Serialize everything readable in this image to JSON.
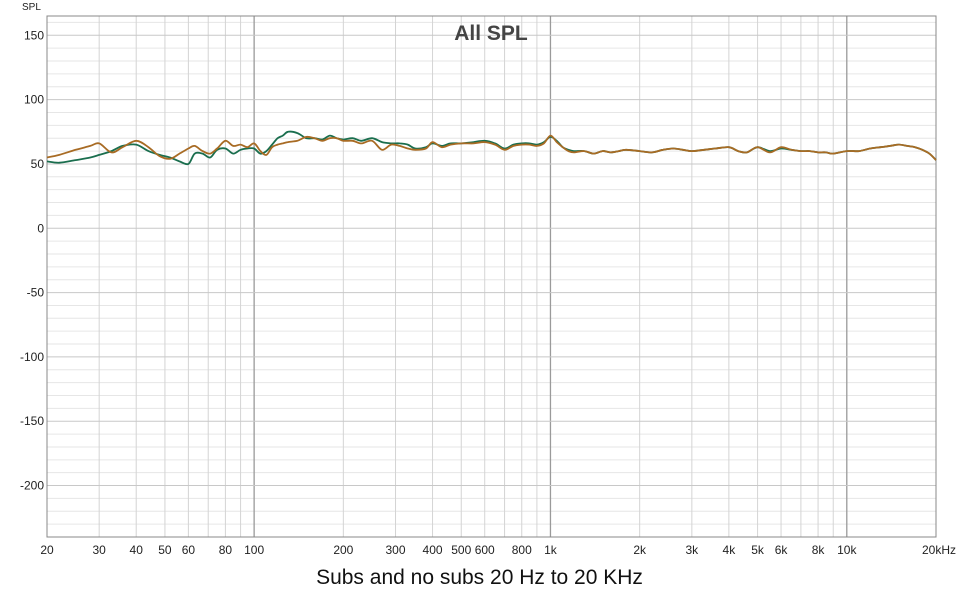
{
  "caption": "Subs and no subs 20 Hz to 20 KHz",
  "chart_data": {
    "type": "line",
    "title": "All SPL",
    "ylabel": "SPL",
    "xlabel": "",
    "x_scale": "log",
    "xlim": [
      20,
      20000
    ],
    "ylim": [
      -240,
      165
    ],
    "y_ticks": [
      150,
      100,
      50,
      0,
      -50,
      -100,
      -150,
      -200
    ],
    "y_tick_labels": [
      "150",
      "100",
      "50",
      "0",
      "-50",
      "-100",
      "-150",
      "-200"
    ],
    "x_ticks": [
      20,
      30,
      40,
      50,
      60,
      80,
      100,
      200,
      300,
      400,
      500,
      600,
      800,
      1000,
      2000,
      3000,
      4000,
      5000,
      6000,
      8000,
      10000,
      20000
    ],
    "x_tick_labels": [
      "20",
      "30",
      "40",
      "50",
      "60",
      "80",
      "100",
      "200",
      "300",
      "400",
      "500",
      "600",
      "800",
      "1k",
      "2k",
      "3k",
      "4k",
      "5k",
      "6k",
      "8k",
      "10k",
      "20kHz"
    ],
    "grid": true,
    "legend": "none",
    "series": [
      {
        "color": "#1a6e4e",
        "x": [
          20,
          22,
          25,
          28,
          30,
          33,
          36,
          40,
          44,
          48,
          52,
          56,
          60,
          63,
          67,
          71,
          75,
          80,
          85,
          90,
          95,
          100,
          105,
          110,
          115,
          120,
          125,
          130,
          140,
          150,
          160,
          170,
          180,
          190,
          200,
          215,
          230,
          250,
          270,
          290,
          310,
          330,
          350,
          380,
          400,
          430,
          460,
          500,
          550,
          600,
          650,
          700,
          750,
          800,
          850,
          900,
          950,
          1000,
          1050,
          1100,
          1150,
          1200,
          1300,
          1400,
          1500,
          1600,
          1700,
          1800,
          2000,
          2200,
          2400,
          2600,
          2800,
          3000,
          3300,
          3600,
          4000,
          4300,
          4600,
          5000,
          5500,
          6000,
          6500,
          7000,
          7500,
          8000,
          8500,
          9000,
          10000,
          11000,
          12000,
          13000,
          14000,
          15000,
          16000,
          17000,
          18000,
          19000,
          20000
        ],
        "y": [
          52,
          51,
          53,
          55,
          57,
          60,
          64,
          65,
          60,
          57,
          55,
          52,
          50,
          58,
          58,
          55,
          61,
          62,
          58,
          61,
          62,
          62,
          58,
          60,
          65,
          70,
          72,
          75,
          74,
          70,
          70,
          69,
          72,
          70,
          69,
          70,
          68,
          70,
          67,
          66,
          66,
          65,
          62,
          63,
          66,
          64,
          66,
          66,
          67,
          68,
          66,
          62,
          65,
          66,
          66,
          65,
          67,
          71,
          68,
          63,
          61,
          60,
          60,
          58,
          60,
          59,
          60,
          61,
          60,
          59,
          61,
          62,
          61,
          60,
          61,
          62,
          63,
          60,
          59,
          63,
          60,
          62,
          61,
          60,
          60,
          59,
          59,
          58,
          60,
          60,
          62,
          63,
          64,
          65,
          64,
          63,
          61,
          58,
          53
        ]
      },
      {
        "color": "#a86b24",
        "x": [
          20,
          22,
          25,
          28,
          30,
          33,
          36,
          40,
          44,
          48,
          52,
          56,
          60,
          63,
          67,
          71,
          75,
          80,
          85,
          90,
          95,
          100,
          105,
          110,
          115,
          120,
          125,
          130,
          140,
          150,
          160,
          170,
          180,
          190,
          200,
          215,
          230,
          250,
          270,
          290,
          310,
          330,
          350,
          380,
          400,
          430,
          460,
          500,
          550,
          600,
          650,
          700,
          750,
          800,
          850,
          900,
          950,
          1000,
          1050,
          1100,
          1150,
          1200,
          1300,
          1400,
          1500,
          1600,
          1700,
          1800,
          2000,
          2200,
          2400,
          2600,
          2800,
          3000,
          3300,
          3600,
          4000,
          4300,
          4600,
          5000,
          5500,
          6000,
          6500,
          7000,
          7500,
          8000,
          8500,
          9000,
          10000,
          11000,
          12000,
          13000,
          14000,
          15000,
          16000,
          17000,
          18000,
          19000,
          20000
        ],
        "y": [
          55,
          57,
          61,
          64,
          66,
          59,
          63,
          68,
          63,
          56,
          54,
          58,
          62,
          64,
          60,
          58,
          62,
          68,
          64,
          65,
          63,
          66,
          60,
          57,
          63,
          65,
          66,
          67,
          68,
          71,
          70,
          68,
          70,
          70,
          68,
          68,
          66,
          68,
          61,
          65,
          64,
          62,
          61,
          62,
          67,
          63,
          65,
          66,
          66,
          67,
          65,
          61,
          64,
          65,
          65,
          64,
          66,
          72,
          67,
          63,
          60,
          59,
          60,
          58,
          60,
          59,
          60,
          61,
          60,
          59,
          61,
          62,
          61,
          60,
          61,
          62,
          63,
          60,
          59,
          63,
          59,
          63,
          61,
          60,
          60,
          59,
          59,
          58,
          60,
          60,
          62,
          63,
          64,
          65,
          64,
          63,
          61,
          58,
          53
        ]
      }
    ]
  }
}
